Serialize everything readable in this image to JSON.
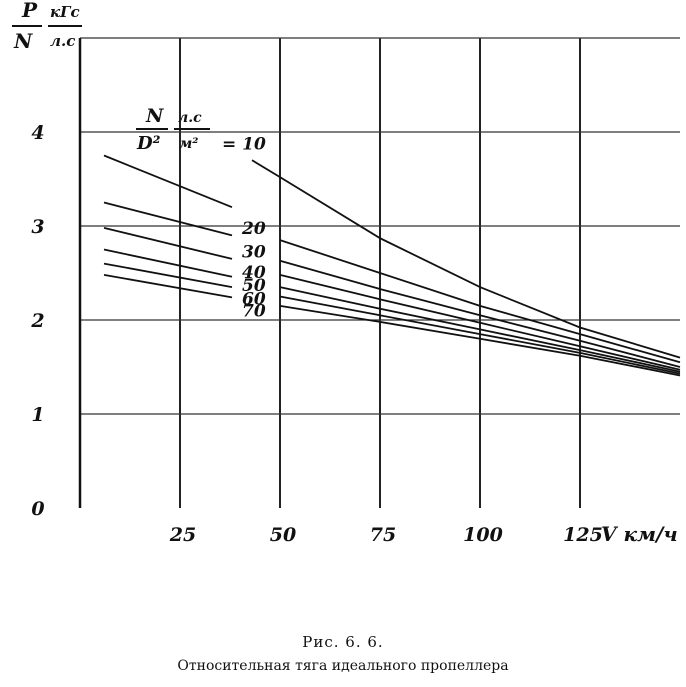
{
  "chart_data": {
    "type": "line",
    "title": "",
    "ylabel": {
      "num": "P",
      "den": "N",
      "unit_num": "кГс",
      "unit_den": "л.с"
    },
    "xlabel": "V км/ч",
    "xlim": [
      0,
      150
    ],
    "ylim": [
      0,
      5
    ],
    "x_ticks": [
      25,
      50,
      75,
      100,
      125
    ],
    "x_tick_labels": [
      "25",
      "50",
      "75",
      "100",
      "125"
    ],
    "y_ticks": [
      0,
      1,
      2,
      3,
      4
    ],
    "y_tick_labels": [
      "0",
      "1",
      "2",
      "3",
      "4"
    ],
    "grid": true,
    "param_label": {
      "num": "N",
      "den": "D²",
      "unit_num": "л.с",
      "unit_den": "м²"
    },
    "series": [
      {
        "label": "= 10",
        "x": [
          43,
          50,
          75,
          100,
          125,
          150
        ],
        "y": [
          3.7,
          3.52,
          2.87,
          2.35,
          1.92,
          1.6
        ]
      },
      {
        "label": "20",
        "x": [
          6,
          38
        ],
        "y": [
          3.75,
          3.2
        ]
      },
      {
        "label": "20",
        "x": [
          50,
          75,
          100,
          125,
          150
        ],
        "y": [
          2.85,
          2.5,
          2.15,
          1.85,
          1.55
        ]
      },
      {
        "label": "30",
        "x": [
          6,
          38
        ],
        "y": [
          3.25,
          2.9
        ]
      },
      {
        "label": "30",
        "x": [
          50,
          75,
          100,
          125,
          150
        ],
        "y": [
          2.63,
          2.33,
          2.05,
          1.78,
          1.5
        ]
      },
      {
        "label": "40",
        "x": [
          6,
          38
        ],
        "y": [
          2.98,
          2.65
        ]
      },
      {
        "label": "40",
        "x": [
          50,
          75,
          100,
          125,
          150
        ],
        "y": [
          2.48,
          2.22,
          1.97,
          1.72,
          1.47
        ]
      },
      {
        "label": "50",
        "x": [
          6,
          38
        ],
        "y": [
          2.75,
          2.46
        ]
      },
      {
        "label": "50",
        "x": [
          50,
          75,
          100,
          125,
          150
        ],
        "y": [
          2.35,
          2.12,
          1.9,
          1.68,
          1.45
        ]
      },
      {
        "label": "60",
        "x": [
          6,
          38
        ],
        "y": [
          2.6,
          2.35
        ]
      },
      {
        "label": "60",
        "x": [
          50,
          75,
          100,
          125,
          150
        ],
        "y": [
          2.25,
          2.05,
          1.85,
          1.65,
          1.43
        ]
      },
      {
        "label": "70",
        "x": [
          6,
          38
        ],
        "y": [
          2.48,
          2.24
        ]
      },
      {
        "label": "70",
        "x": [
          50,
          75,
          100,
          125,
          150
        ],
        "y": [
          2.15,
          1.98,
          1.8,
          1.62,
          1.41
        ]
      }
    ]
  },
  "caption": {
    "figure_number": "Рис.   6. 6.",
    "title": "Относительная тяга идеального пропеллера"
  }
}
